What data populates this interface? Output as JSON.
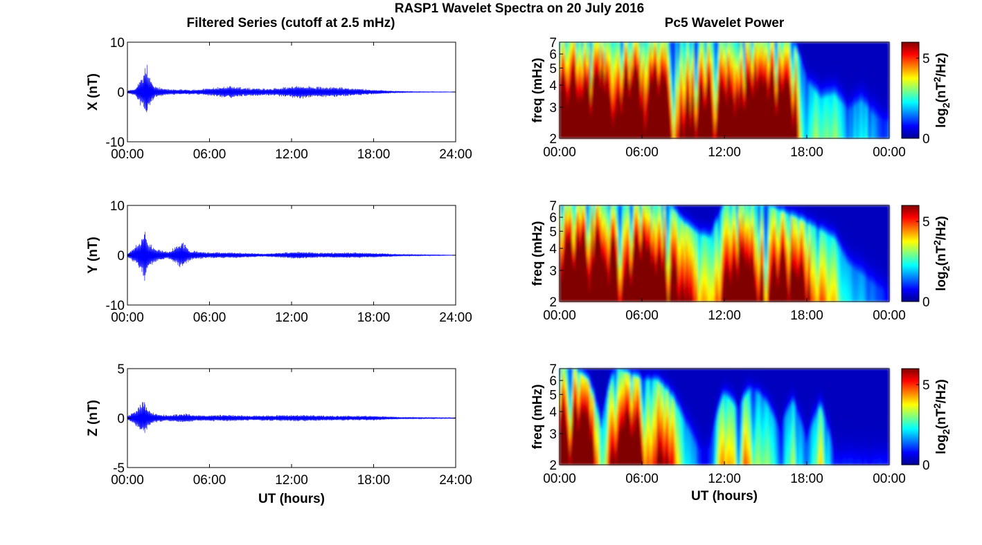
{
  "figure": {
    "title": "RASP1 Wavelet Spectra on 20 July 2016",
    "left_column_title": "Filtered Series (cutoff at 2.5 mHz)",
    "right_column_title": "Pc5 Wavelet Power",
    "xlabel": "UT (hours)"
  },
  "chart_data": [
    {
      "type": "line",
      "component": "X",
      "ylabel": "X (nT)",
      "xlim": [
        0,
        24
      ],
      "ylim": [
        -10,
        10
      ],
      "yticks": [
        "10",
        "0",
        "-10"
      ],
      "xticks": [
        "00:00",
        "06:00",
        "12:00",
        "18:00",
        "24:00"
      ],
      "color": "#0000ff",
      "envelope": {
        "x": [
          0,
          0.6,
          0.9,
          1.2,
          1.35,
          1.6,
          2.0,
          3.0,
          5.0,
          7.5,
          8.5,
          10.5,
          12.5,
          14.0,
          15.5,
          18.0,
          19.5,
          21.0,
          24.0
        ],
        "amp": [
          0.3,
          0.8,
          2.5,
          4.0,
          6.8,
          3.2,
          1.2,
          0.6,
          0.5,
          1.3,
          0.9,
          0.7,
          1.4,
          1.1,
          1.0,
          0.5,
          0.2,
          0.1,
          0.05
        ]
      }
    },
    {
      "type": "line",
      "component": "Y",
      "ylabel": "Y (nT)",
      "xlim": [
        0,
        24
      ],
      "ylim": [
        -10,
        10
      ],
      "yticks": [
        "10",
        "0",
        "-10"
      ],
      "xticks": [
        "00:00",
        "06:00",
        "12:00",
        "18:00",
        "24:00"
      ],
      "color": "#0000ff",
      "envelope": {
        "x": [
          0,
          0.6,
          1.0,
          1.3,
          1.6,
          2.2,
          3.0,
          4.0,
          4.6,
          6.0,
          8.0,
          10.0,
          12.5,
          14.0,
          16.0,
          18.0,
          20.0,
          24.0
        ],
        "amp": [
          0.4,
          2.0,
          3.5,
          5.5,
          2.5,
          1.2,
          0.8,
          2.8,
          1.0,
          0.6,
          0.6,
          0.3,
          0.8,
          0.5,
          0.6,
          0.5,
          0.2,
          0.05
        ]
      }
    },
    {
      "type": "line",
      "component": "Z",
      "ylabel": "Z (nT)",
      "xlim": [
        0,
        24
      ],
      "ylim": [
        -5,
        5
      ],
      "yticks": [
        "5",
        "0",
        "-5"
      ],
      "xticks": [
        "00:00",
        "06:00",
        "12:00",
        "18:00",
        "24:00"
      ],
      "color": "#0000ff",
      "envelope": {
        "x": [
          0,
          0.6,
          1.0,
          1.2,
          1.5,
          2.0,
          3.0,
          4.2,
          5.0,
          7.5,
          9.0,
          12.5,
          14.5,
          18.0,
          20.0,
          24.0
        ],
        "amp": [
          0.2,
          0.8,
          1.5,
          2.0,
          1.0,
          0.5,
          0.3,
          0.5,
          0.3,
          0.35,
          0.25,
          0.35,
          0.25,
          0.25,
          0.1,
          0.05
        ]
      }
    },
    {
      "type": "heatmap",
      "component": "X",
      "ylabel": "freq (mHz)",
      "xlim": [
        0,
        24
      ],
      "ylim": [
        2,
        7
      ],
      "yscale": "log",
      "yticks": [
        "7",
        "6",
        "5",
        "4",
        "3",
        "2"
      ],
      "xticks": [
        "00:00",
        "06:00",
        "12:00",
        "18:00",
        "00:00"
      ],
      "colorbar": {
        "label": "log2(nT2/Hz)",
        "range": [
          0,
          6
        ],
        "ticks": [
          "5",
          "0"
        ],
        "colormap": "jet"
      },
      "activity": {
        "x": [
          0,
          1,
          2,
          3,
          4,
          5,
          6,
          7,
          8,
          9,
          10,
          11,
          12,
          13,
          14,
          15,
          16,
          17,
          18,
          19,
          20,
          21,
          22,
          23,
          24
        ],
        "level": [
          1.0,
          1.0,
          1.0,
          0.95,
          0.9,
          1.0,
          0.95,
          1.0,
          0.85,
          0.8,
          0.85,
          0.9,
          0.95,
          1.0,
          1.0,
          1.0,
          0.95,
          0.85,
          0.2,
          0.3,
          0.3,
          0.15,
          0.25,
          0.15,
          0.1
        ],
        "top": [
          7,
          7,
          7,
          7,
          7,
          7,
          7,
          7,
          7,
          7,
          7,
          7,
          7,
          7,
          7,
          7,
          7,
          7,
          4.2,
          3.3,
          3.5,
          2.8,
          3.2,
          2.6,
          2.4
        ]
      }
    },
    {
      "type": "heatmap",
      "component": "Y",
      "ylabel": "freq (mHz)",
      "xlim": [
        0,
        24
      ],
      "ylim": [
        2,
        7
      ],
      "yscale": "log",
      "yticks": [
        "7",
        "6",
        "5",
        "4",
        "3",
        "2"
      ],
      "xticks": [
        "00:00",
        "06:00",
        "12:00",
        "18:00",
        "00:00"
      ],
      "colorbar": {
        "label": "log2(nT2/Hz)",
        "range": [
          0,
          6
        ],
        "ticks": [
          "5",
          "0"
        ],
        "colormap": "jet"
      },
      "activity": {
        "x": [
          0,
          1,
          2,
          3,
          4,
          5,
          6,
          7,
          8,
          9,
          10,
          11,
          12,
          13,
          14,
          15,
          16,
          17,
          18,
          19,
          20,
          21,
          22,
          23,
          24
        ],
        "level": [
          1.0,
          1.0,
          1.0,
          0.95,
          0.9,
          1.0,
          0.95,
          0.9,
          0.8,
          0.6,
          0.45,
          0.35,
          0.8,
          0.9,
          0.9,
          0.9,
          0.85,
          0.75,
          0.6,
          0.45,
          0.35,
          0.2,
          0.15,
          0.1,
          0.05
        ],
        "top": [
          7,
          7,
          7,
          7,
          7,
          7,
          7,
          7,
          7,
          5.5,
          4.8,
          4.5,
          7,
          7,
          7,
          7,
          6.5,
          6.0,
          5.5,
          5.0,
          4.5,
          3.2,
          2.8,
          2.4,
          2.2
        ]
      }
    },
    {
      "type": "heatmap",
      "component": "Z",
      "ylabel": "freq (mHz)",
      "xlim": [
        0,
        24
      ],
      "ylim": [
        2,
        7
      ],
      "yscale": "log",
      "yticks": [
        "7",
        "6",
        "5",
        "4",
        "3",
        "2"
      ],
      "xticks": [
        "00:00",
        "06:00",
        "12:00",
        "18:00",
        "00:00"
      ],
      "colorbar": {
        "label": "log2(nT2/Hz)",
        "range": [
          0,
          6
        ],
        "ticks": [
          "5",
          "0"
        ],
        "colormap": "jet"
      },
      "activity": {
        "x": [
          0,
          1,
          2,
          3,
          4,
          5,
          6,
          7,
          8,
          9,
          10,
          11,
          12,
          13,
          14,
          15,
          16,
          17,
          18,
          19,
          20,
          21,
          22,
          23,
          24
        ],
        "level": [
          0.9,
          1.0,
          0.85,
          0.2,
          0.7,
          0.8,
          0.75,
          0.7,
          0.55,
          0.3,
          0.1,
          0.1,
          0.55,
          0.35,
          0.55,
          0.35,
          0.2,
          0.3,
          0.1,
          0.45,
          0.05,
          0.05,
          0.05,
          0.05,
          0.05
        ],
        "top": [
          7,
          7,
          6.0,
          3.0,
          7,
          6.5,
          6.0,
          6.0,
          5.0,
          3.5,
          2.4,
          2.4,
          5.0,
          4.0,
          5.5,
          4.5,
          3.0,
          4.5,
          2.5,
          4.2,
          2.1,
          2.1,
          2.1,
          2.1,
          2.1
        ]
      }
    }
  ]
}
